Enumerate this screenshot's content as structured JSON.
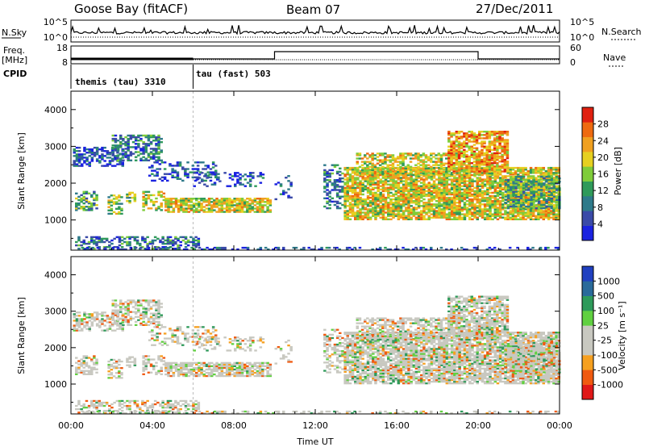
{
  "header": {
    "station": "Goose Bay (fitACF)",
    "beam": "Beam 07",
    "date": "27/Dec/2011"
  },
  "strip": {
    "nsky_label": "N.Sky",
    "nsearch_label": "N.Search",
    "freq_label": "Freq.",
    "freq_unit": "[MHz]",
    "nave_label": "Nave",
    "cpid_label": "CPID",
    "n_left_ticks": [
      "10^5",
      "10^0"
    ],
    "n_right_ticks": [
      "10^5",
      "10^0"
    ],
    "freq_left_ticks": [
      "18",
      "8"
    ],
    "nave_right_ticks": [
      "60",
      "0"
    ]
  },
  "cpid_modes": [
    {
      "label": "themis (tau) 3310",
      "start_hour": 0,
      "end_hour": 6
    },
    {
      "label": "tau (fast) 503",
      "start_hour": 6,
      "end_hour": 24
    }
  ],
  "colors": {
    "power_scale": [
      "#1a22e0",
      "#3a4aa8",
      "#2e7a8a",
      "#2f9a5a",
      "#7fcc3a",
      "#e6d020",
      "#f0a020",
      "#ee6a10",
      "#e02010"
    ],
    "velocity_scale": [
      "#e01818",
      "#f05a10",
      "#f6a020",
      "#c8c8c0",
      "#c8c8c0",
      "#60d040",
      "#2e9a5a",
      "#2a6a9a",
      "#2040c0"
    ]
  },
  "chart_data": [
    {
      "type": "heatmap",
      "name": "Power",
      "xlabel": "",
      "ylabel": "Slant Range [km]",
      "xlim": [
        0,
        24
      ],
      "ylim": [
        180,
        4500
      ],
      "y_ticks": [
        1000,
        2000,
        3000,
        4000
      ],
      "colorbar_label": "Power [dB]",
      "colorbar_ticks": [
        "4",
        "8",
        "12",
        "16",
        "20",
        "24",
        "28"
      ],
      "colorbar_range": [
        0,
        30
      ]
    },
    {
      "type": "heatmap",
      "name": "Velocity",
      "xlabel": "Time UT",
      "ylabel": "Slant Range [km]",
      "xlim": [
        0,
        24
      ],
      "ylim": [
        180,
        4500
      ],
      "x_ticks": [
        "00:00",
        "04:00",
        "08:00",
        "12:00",
        "16:00",
        "20:00",
        "00:00"
      ],
      "y_ticks": [
        1000,
        2000,
        3000,
        4000
      ],
      "colorbar_label": "Velocity [m s⁻¹]",
      "colorbar_ticks": [
        "-1000",
        "-500",
        "-100",
        "-25",
        "25",
        "100",
        "500",
        "1000"
      ]
    }
  ]
}
